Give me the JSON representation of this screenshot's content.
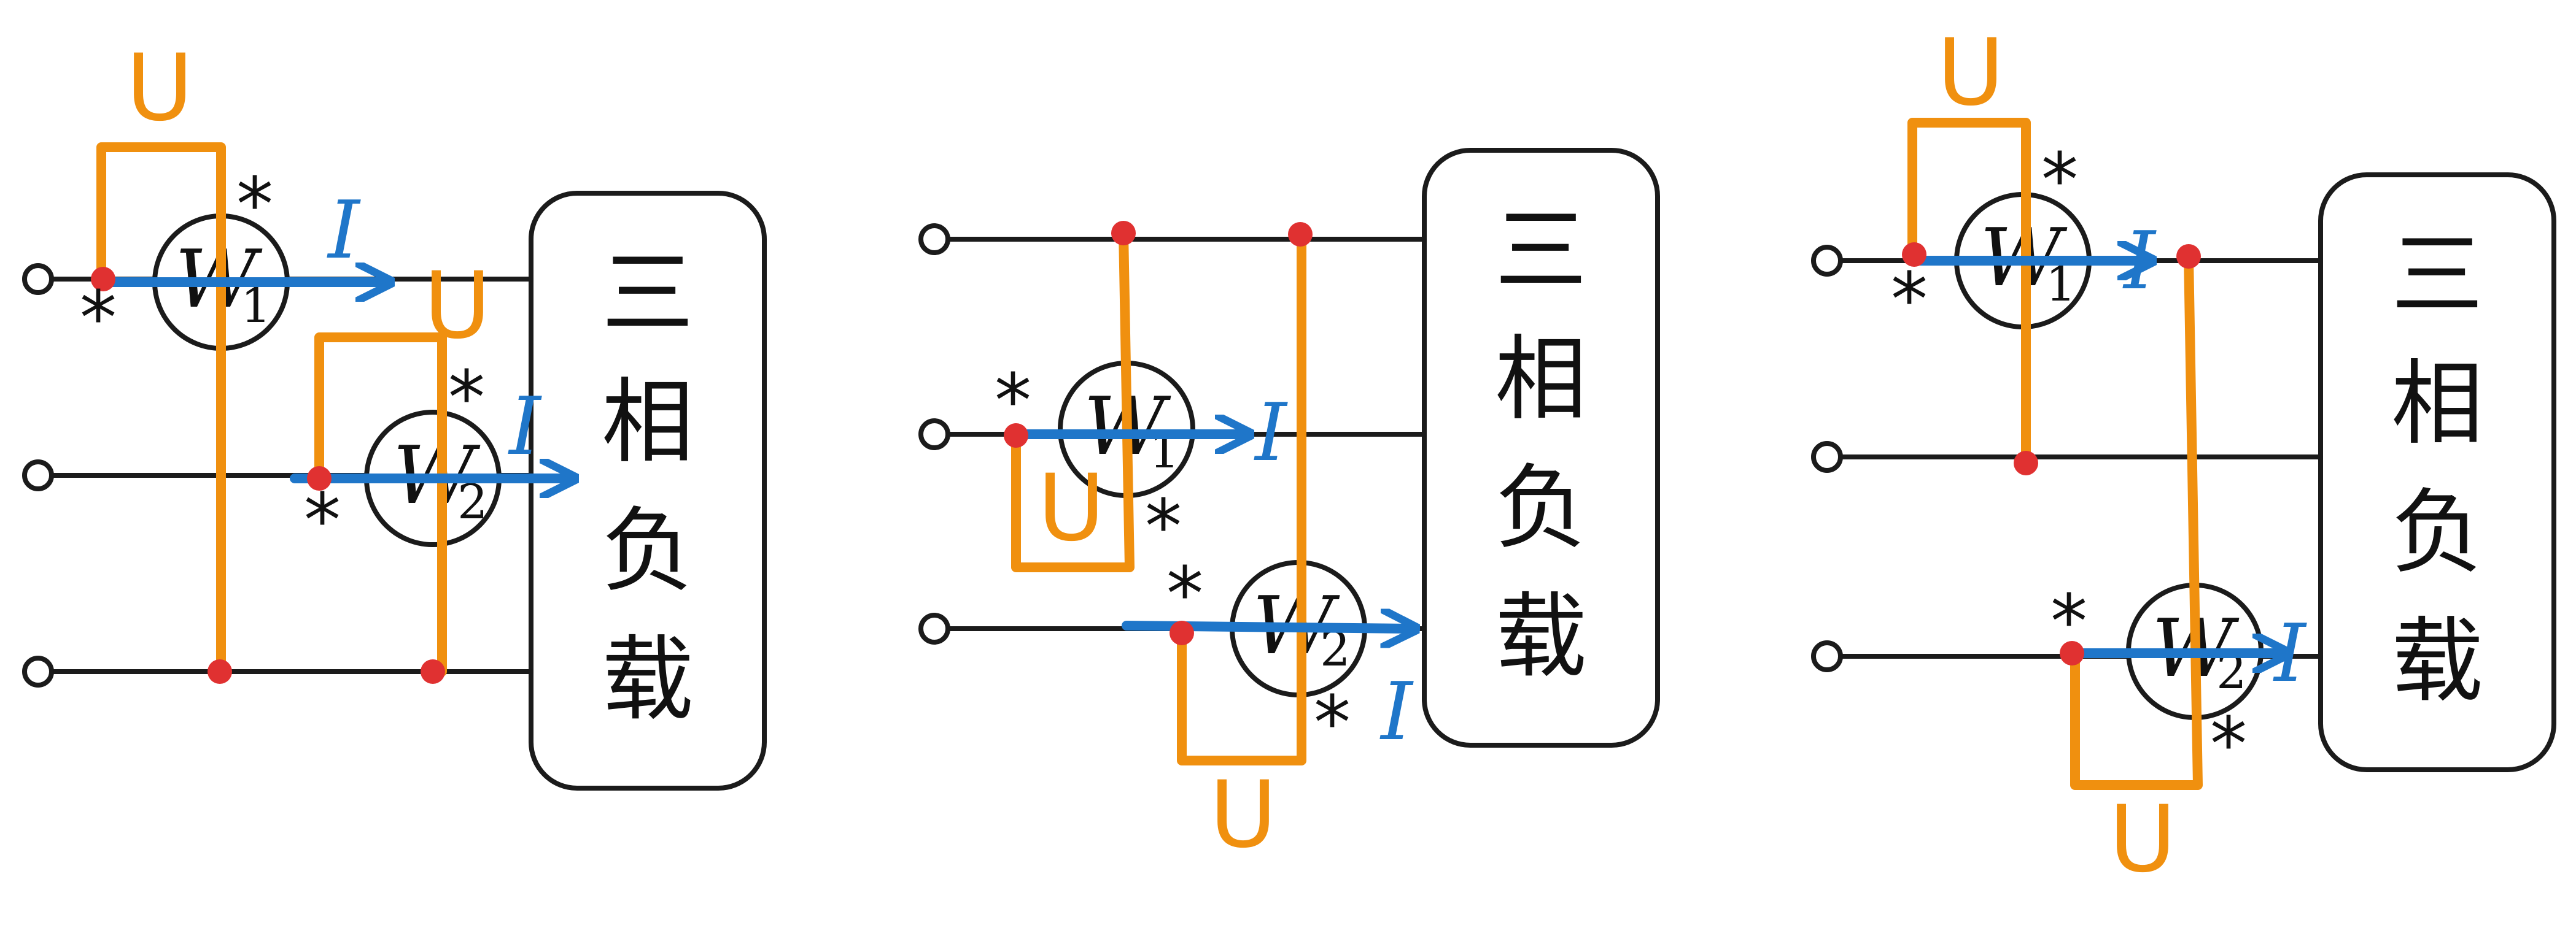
{
  "load_label": {
    "chars": [
      "三",
      "相",
      "负",
      "载"
    ]
  },
  "meters": {
    "w1": {
      "letter": "W",
      "sub": "1"
    },
    "w2": {
      "letter": "W",
      "sub": "2"
    }
  },
  "polarity_mark": "*",
  "voltage_label": "U",
  "current_label": "I",
  "colors": {
    "wire": "#1b1b1b",
    "voltage": "#f0900f",
    "current": "#1f76c9",
    "node": "#e03131"
  }
}
